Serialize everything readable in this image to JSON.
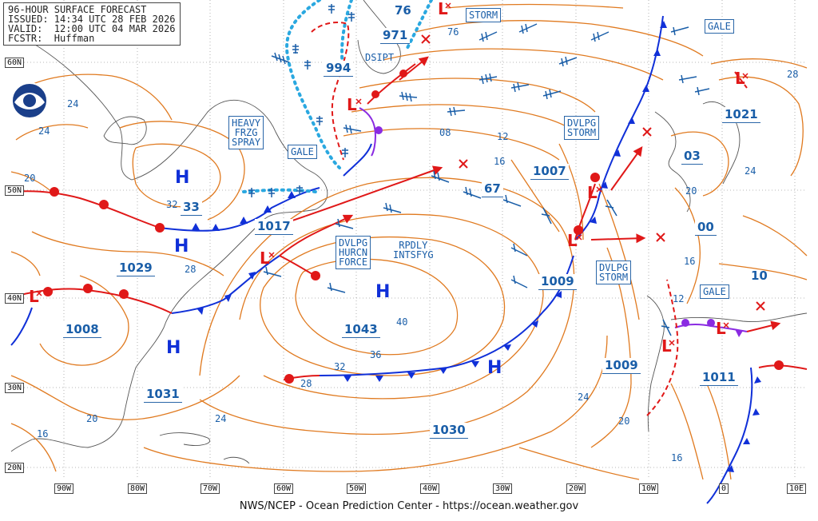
{
  "header": {
    "line1": "96-HOUR SURFACE FORECAST",
    "line2": "ISSUED: 14:34 UTC 28 FEB 2026",
    "line3": "VALID:  12:00 UTC 04 MAR 2026",
    "line4": "FCSTR:  Huffman"
  },
  "footer": {
    "text": "NWS/NCEP - Ocean Prediction Center - https://ocean.weather.gov"
  },
  "latitudes": [
    "60N",
    "50N",
    "40N",
    "30N",
    "20N"
  ],
  "longitudes": [
    "90W",
    "80W",
    "70W",
    "60W",
    "50W",
    "40W",
    "30W",
    "20W",
    "10W",
    "0",
    "10E"
  ],
  "pressure_values": {
    "p1029": "1029",
    "p1017": "1017",
    "p1008": "1008",
    "p1031": "1031",
    "p1043": "1043",
    "p1030": "1030",
    "p1009a": "1009",
    "p1009b": "1009",
    "p1007": "1007",
    "p1021": "1021",
    "p1011": "1011",
    "p994": "994",
    "p971": "971",
    "p03": "03",
    "p00": "00",
    "p67": "67",
    "p33": "33"
  },
  "isobar_labels": {
    "l24a": "24",
    "l24b": "24",
    "l20a": "20",
    "l32a": "32",
    "l28a": "28",
    "l20b": "20",
    "l16a": "16",
    "l24c": "24",
    "l40": "40",
    "l36": "36",
    "l32b": "32",
    "l28b": "28",
    "l24d": "24",
    "l20c": "20",
    "l16b": "16",
    "l08": "08",
    "l12a": "12",
    "l16c": "16",
    "l76": "76",
    "l24e": "24",
    "l20d": "20",
    "l16d": "16",
    "l12b": "12",
    "l10": "10",
    "l28c": "28"
  },
  "warnings": {
    "storm1": "STORM",
    "gale1": "GALE",
    "gale2": "GALE",
    "gale3": "GALE",
    "dsipt": "DSIPT",
    "heavy": "HEAVY\nFRZG\nSPRAY",
    "dvlpg_storm1": "DVLPG\nSTORM",
    "dvlpg_storm2": "DVLPG\nSTORM",
    "dvlpg_hurcn": "DVLPG\nHURCN\nFORCE",
    "rpdly": "RPDLY\nINTSFYG"
  },
  "symbols": {
    "high": "H",
    "low": "L"
  },
  "colors": {
    "isobar": "#e07a20",
    "warm_front": "#e01818",
    "cold_front": "#1030d8",
    "occluded": "#8a2be2",
    "text_blue": "#1a5ea8",
    "ice": "#2aa8e0",
    "track": "#e01818",
    "coast": "#555555",
    "grid": "#999999"
  }
}
